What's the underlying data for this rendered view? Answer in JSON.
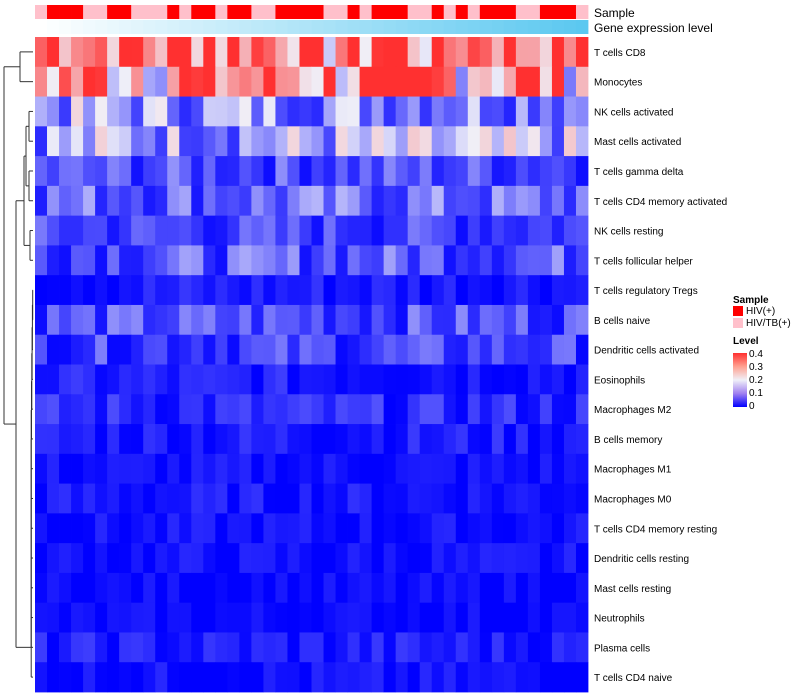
{
  "chart_data": {
    "type": "heatmap",
    "row_labels": [
      "T cells CD8",
      "Monocytes",
      "NK cells activated",
      "Mast cells activated",
      "T cells gamma delta",
      "T cells CD4 memory activated",
      "NK cells resting",
      "T cells follicular helper",
      "T cells regulatory  Tregs",
      "B cells naive",
      "Dendritic cells activated",
      "Eosinophils",
      "Macrophages M2",
      "B cells memory",
      "Macrophages M1",
      "Macrophages M0",
      "T cells CD4 memory resting",
      "Dendritic cells resting",
      "Mast cells resting",
      "Neutrophils",
      "Plasma cells",
      "T cells CD4 naive"
    ],
    "row_base_levels": [
      0.33,
      0.3,
      0.12,
      0.13,
      0.06,
      0.08,
      0.05,
      0.07,
      0.02,
      0.06,
      0.05,
      0.02,
      0.03,
      0.02,
      0.01,
      0.015,
      0.01,
      0.01,
      0.005,
      0.005,
      0.02,
      0.01
    ],
    "n_samples": 46,
    "annotation_labels": {
      "sample": "Sample",
      "expression": "Gene expression level"
    },
    "sample_groups_sequence": [
      "HIV/TB(+)",
      "HIV(+)",
      "HIV(+)",
      "HIV(+)",
      "HIV/TB(+)",
      "HIV/TB(+)",
      "HIV(+)",
      "HIV(+)",
      "HIV/TB(+)",
      "HIV/TB(+)",
      "HIV/TB(+)",
      "HIV(+)",
      "HIV/TB(+)",
      "HIV(+)",
      "HIV(+)",
      "HIV/TB(+)",
      "HIV(+)",
      "HIV(+)",
      "HIV/TB(+)",
      "HIV/TB(+)",
      "HIV(+)",
      "HIV(+)",
      "HIV(+)",
      "HIV(+)",
      "HIV/TB(+)",
      "HIV/TB(+)",
      "HIV(+)",
      "HIV/TB(+)",
      "HIV(+)",
      "HIV(+)",
      "HIV(+)",
      "HIV/TB(+)",
      "HIV/TB(+)",
      "HIV(+)",
      "HIV/TB(+)",
      "HIV(+)",
      "HIV/TB(+)",
      "HIV(+)",
      "HIV(+)",
      "HIV(+)",
      "HIV/TB(+)",
      "HIV/TB(+)",
      "HIV(+)",
      "HIV(+)",
      "HIV(+)",
      "HIV/TB(+)"
    ],
    "legend": {
      "sample_title": "Sample",
      "groups": [
        {
          "label": "HIV(+)",
          "color": "#ff0000"
        },
        {
          "label": "HIV/TB(+)",
          "color": "#ffc0cb"
        }
      ],
      "level_title": "Level",
      "level_ticks": [
        "0.4",
        "0.3",
        "0.2",
        "0.1",
        "0"
      ],
      "level_range": [
        0,
        0.4
      ]
    },
    "color_scale": {
      "low": "#0000ff",
      "mid": "#f0f0f8",
      "high": "#ff3030"
    },
    "expression_gradient": [
      "#ffffff",
      "#5bc8f0"
    ]
  }
}
